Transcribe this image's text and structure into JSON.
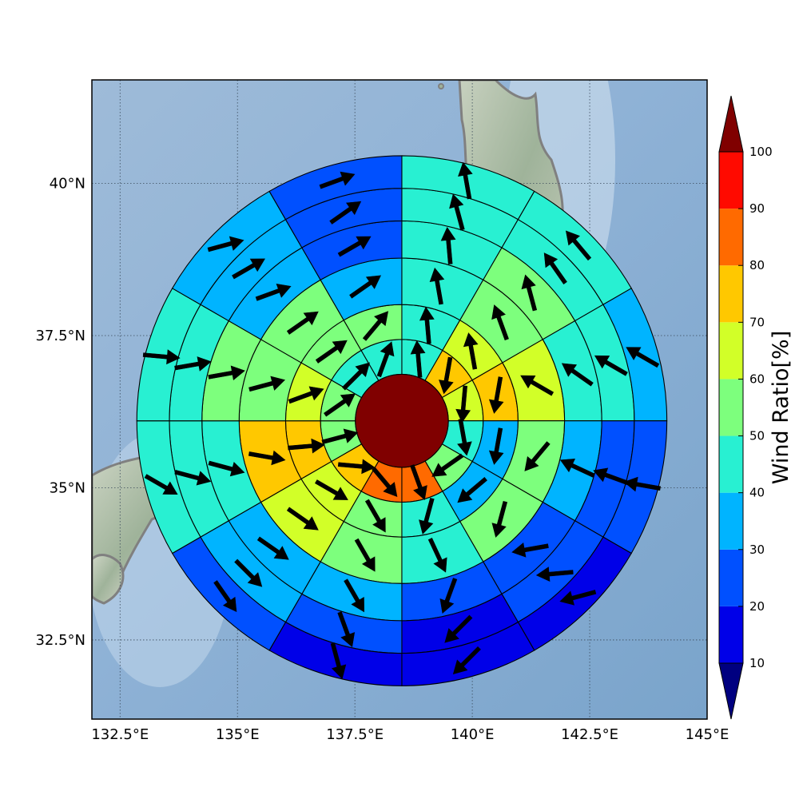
{
  "chart_data": {
    "type": "heatmap",
    "subtype": "polar-sector wind map over Japan with wind direction arrows",
    "title": "",
    "map": {
      "lon_range": [
        131.9,
        145.0
      ],
      "lat_range": [
        31.2,
        41.7
      ],
      "lon_ticks": [
        132.5,
        135.0,
        137.5,
        140.0,
        142.5,
        145.0
      ],
      "lat_ticks": [
        32.5,
        35.0,
        37.5,
        40.0
      ],
      "lon_tick_labels": [
        "132.5°E",
        "135°E",
        "137.5°E",
        "140°E",
        "142.5°E",
        "145°E"
      ],
      "lat_tick_labels": [
        "32.5°N",
        "35°N",
        "37.5°N",
        "40°N"
      ],
      "grid": true
    },
    "polar_grid": {
      "center": {
        "lon": 138.5,
        "lat": 36.1
      },
      "sector_count": 12,
      "ring_radii": [
        1.0,
        1.75,
        2.5,
        3.5,
        4.3,
        5.0,
        5.7
      ],
      "center_value": 100,
      "rings": [
        {
          "values": [
            40,
            70,
            60,
            40,
            50,
            80,
            80,
            70,
            50,
            50,
            40,
            40
          ],
          "arrow_deg": [
            355,
            190,
            185,
            170,
            235,
            160,
            140,
            95,
            75,
            55,
            45,
            20
          ]
        },
        {
          "values": [
            40,
            60,
            70,
            30,
            30,
            40,
            50,
            60,
            70,
            60,
            50,
            50
          ],
          "arrow_deg": [
            355,
            350,
            190,
            190,
            230,
            195,
            150,
            120,
            85,
            70,
            55,
            40
          ]
        },
        {
          "values": [
            40,
            50,
            60,
            50,
            50,
            40,
            50,
            60,
            70,
            50,
            50,
            30
          ],
          "arrow_deg": [
            350,
            340,
            300,
            220,
            195,
            155,
            150,
            125,
            100,
            75,
            55,
            55
          ]
        },
        {
          "values": [
            40,
            50,
            40,
            30,
            20,
            20,
            30,
            30,
            40,
            50,
            30,
            20
          ],
          "arrow_deg": [
            355,
            345,
            305,
            295,
            260,
            200,
            150,
            125,
            105,
            80,
            70,
            60
          ]
        },
        {
          "values": [
            40,
            40,
            40,
            20,
            20,
            10,
            20,
            30,
            40,
            40,
            30,
            20
          ],
          "arrow_deg": [
            345,
            325,
            300,
            290,
            265,
            225,
            160,
            135,
            105,
            80,
            60,
            55
          ]
        },
        {
          "values": [
            40,
            40,
            30,
            20,
            10,
            10,
            10,
            20,
            40,
            40,
            30,
            20
          ],
          "arrow_deg": [
            350,
            320,
            300,
            280,
            255,
            225,
            165,
            145,
            120,
            95,
            75,
            70
          ]
        }
      ]
    },
    "colorbar": {
      "label": "Wind Ratio[%]",
      "boundaries": [
        10,
        20,
        30,
        40,
        50,
        60,
        70,
        80,
        90,
        100
      ],
      "tick_labels": [
        "10",
        "20",
        "30",
        "40",
        "50",
        "60",
        "70",
        "80",
        "90",
        "100"
      ],
      "colors": [
        "#0000e8",
        "#0050ff",
        "#00b4ff",
        "#28f0d2",
        "#7dff7d",
        "#d2ff28",
        "#ffc800",
        "#ff6a00",
        "#ff0a00"
      ],
      "under_color": "#000080",
      "over_color": "#800000",
      "extend": "both"
    }
  }
}
